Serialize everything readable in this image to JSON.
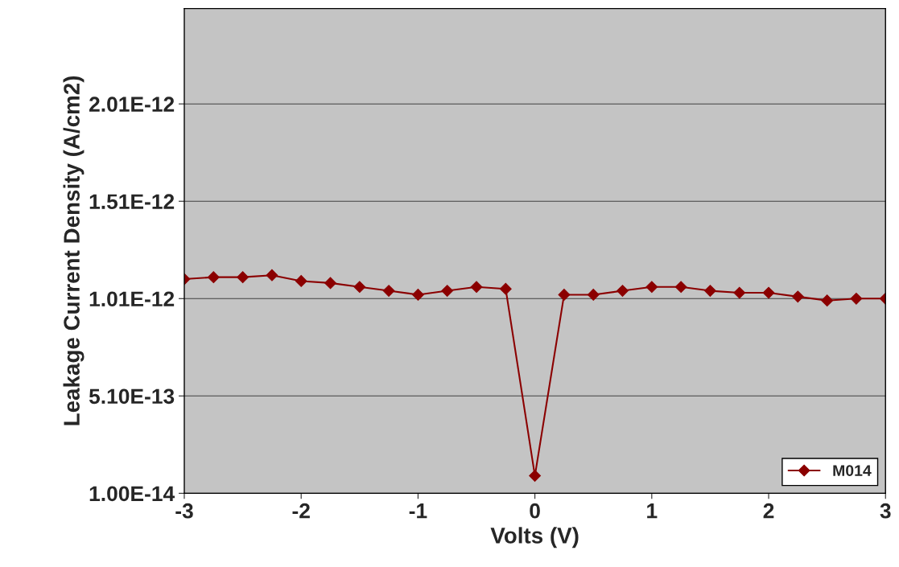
{
  "chart_data": {
    "type": "line",
    "xlabel": "Volts (V)",
    "ylabel": "Leakage Current Density (A/cm2)",
    "series": [
      {
        "name": "M014",
        "color": "#8b0000",
        "x": [
          -3,
          -2.75,
          -2.5,
          -2.25,
          -2,
          -1.75,
          -1.5,
          -1.25,
          -1,
          -0.75,
          -0.5,
          -0.25,
          0,
          0.25,
          0.5,
          0.75,
          1,
          1.25,
          1.5,
          1.75,
          2,
          2.25,
          2.5,
          2.75,
          3
        ],
        "values": [
          1.11e-12,
          1.12e-12,
          1.12e-12,
          1.13e-12,
          1.1e-12,
          1.09e-12,
          1.07e-12,
          1.05e-12,
          1.03e-12,
          1.05e-12,
          1.07e-12,
          1.06e-12,
          1e-13,
          1.03e-12,
          1.03e-12,
          1.05e-12,
          1.07e-12,
          1.07e-12,
          1.05e-12,
          1.04e-12,
          1.04e-12,
          1.02e-12,
          1e-12,
          1.01e-12,
          1.01e-12
        ]
      }
    ],
    "xlim": [
      -3,
      3
    ],
    "xticks": [
      -3,
      -2,
      -1,
      0,
      1,
      2,
      3
    ],
    "ylim": [
      1e-14,
      2.5e-12
    ],
    "yticks": [
      {
        "value": 1e-14,
        "label": "1.00E-14"
      },
      {
        "value": 5.1e-13,
        "label": "5.10E-13"
      },
      {
        "value": 1.01e-12,
        "label": "1.01E-12"
      },
      {
        "value": 1.51e-12,
        "label": "1.51E-12"
      },
      {
        "value": 2.01e-12,
        "label": "2.01E-12"
      }
    ],
    "grid": "y",
    "legend": "bottom right",
    "marker": "diamond",
    "line_style": "solid"
  }
}
